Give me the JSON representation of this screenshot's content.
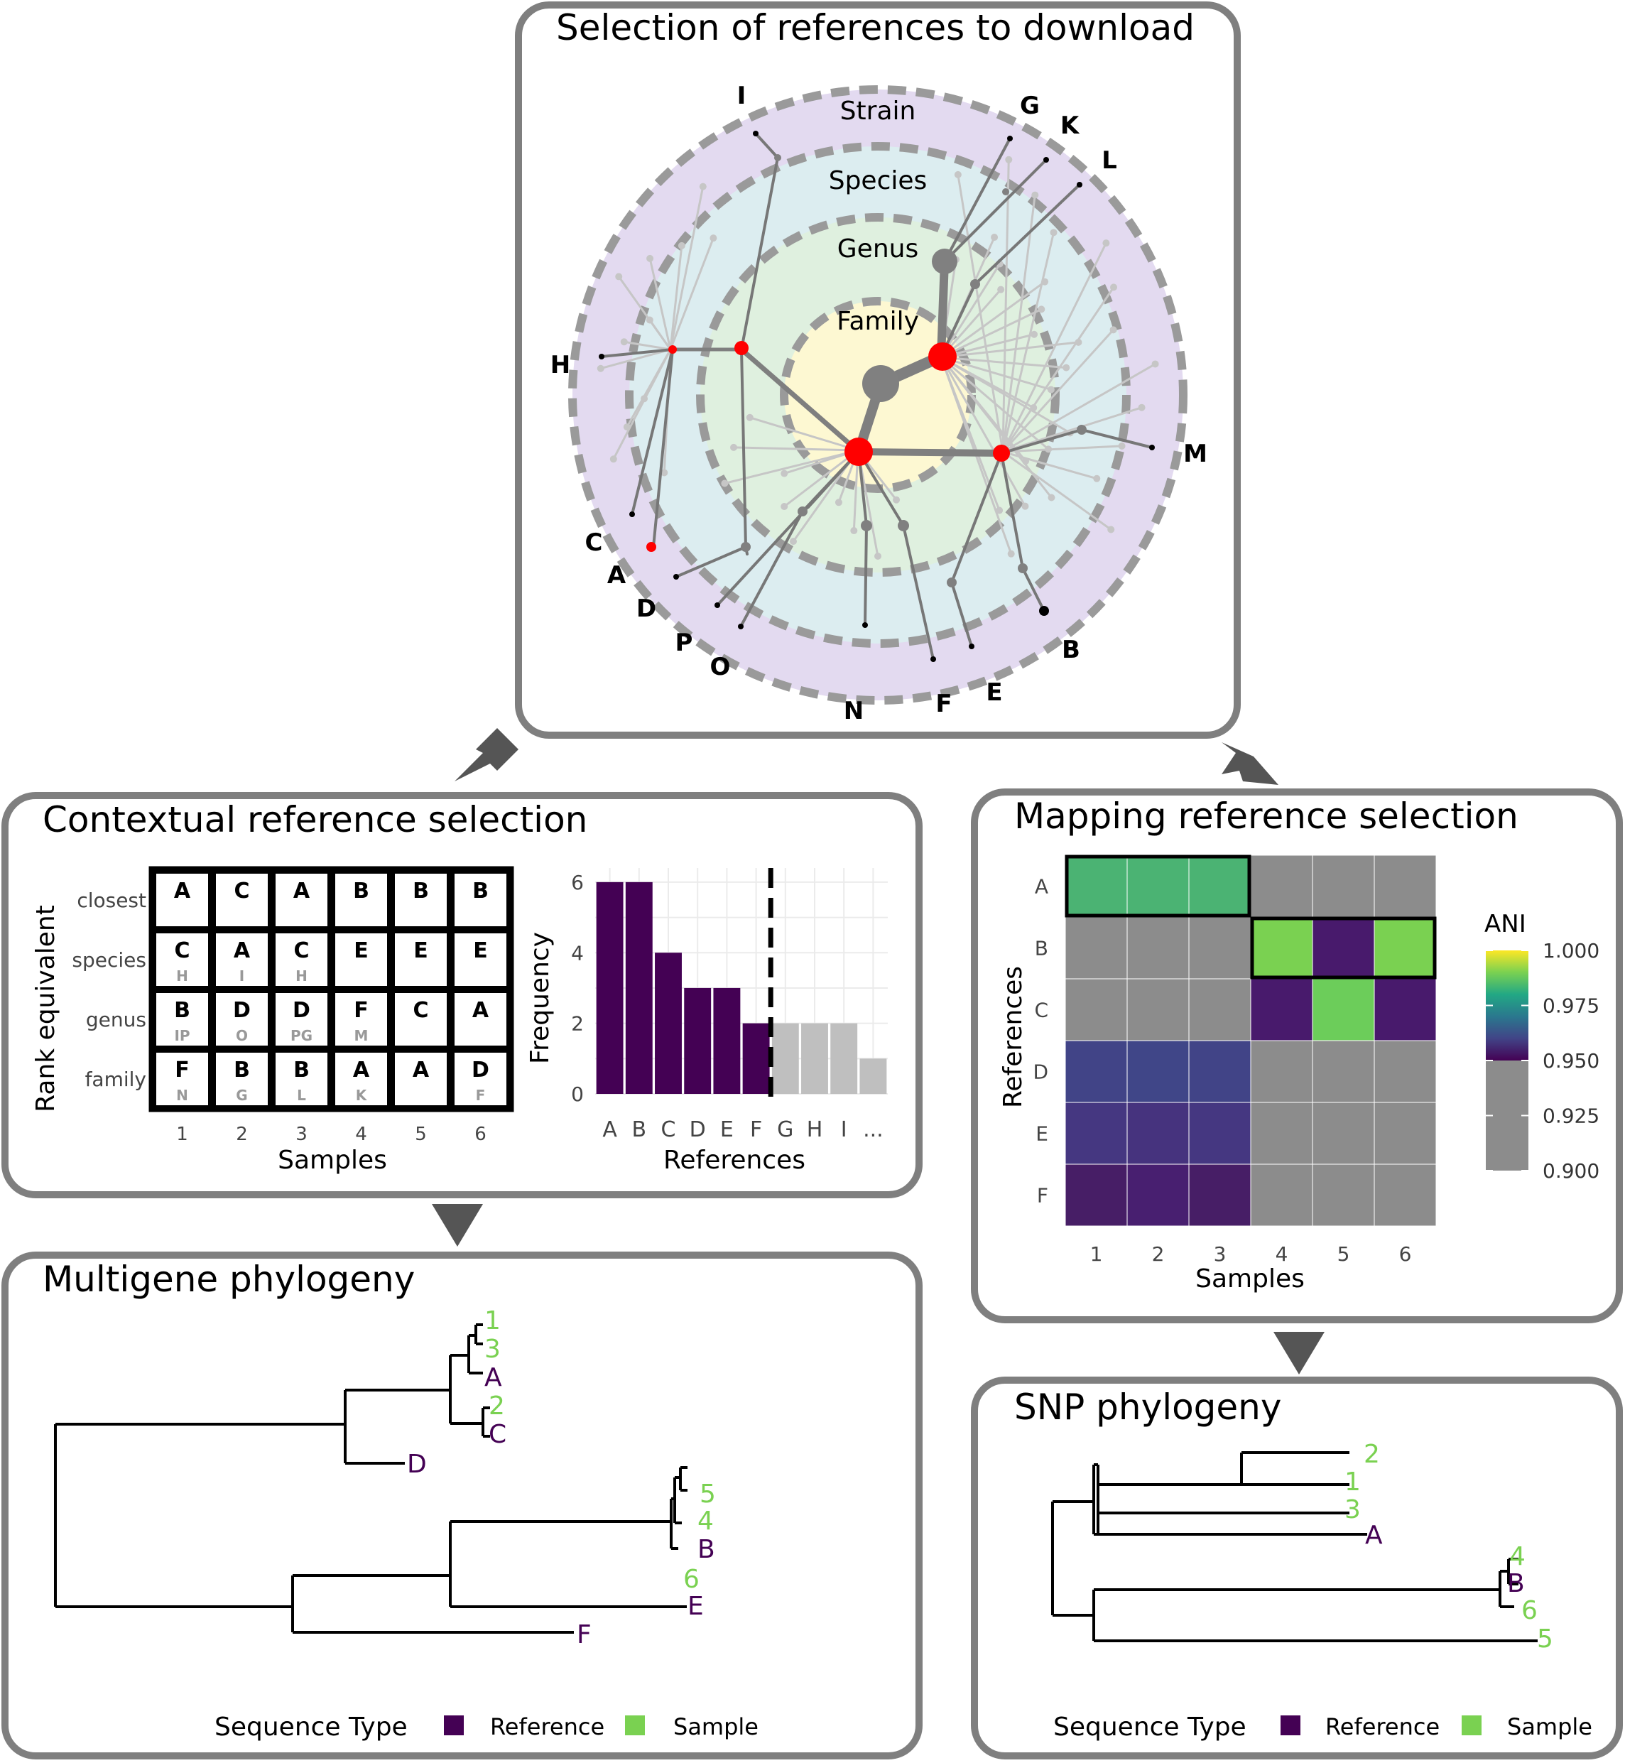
{
  "colors": {
    "reference": "#440154",
    "sample": "#7ad151",
    "gray": "#7f7f7f",
    "red": "#ff0000",
    "strain_ring": "#e3daf0",
    "species_ring": "#dcedf0",
    "genus_ring": "#dff0df",
    "family_ring": "#fdf8d2",
    "light_bar": "#bfbfbf",
    "heat_gray": "#8c8c8c"
  },
  "top_panel": {
    "title": "Selection of references to download",
    "rings": [
      "Strain",
      "Species",
      "Genus",
      "Family"
    ],
    "leaf_labels": [
      "I",
      "G",
      "K",
      "L",
      "H",
      "M",
      "C",
      "A",
      "D",
      "P",
      "O",
      "N",
      "F",
      "E",
      "B"
    ]
  },
  "contextual": {
    "title": "Contextual reference selection",
    "table": {
      "ylabel": "Rank equivalent",
      "xlabel": "Samples",
      "rows": [
        "closest",
        "species",
        "genus",
        "family"
      ],
      "cols": [
        "1",
        "2",
        "3",
        "4",
        "5",
        "6"
      ],
      "cells": [
        [
          [
            "A",
            ""
          ],
          [
            "C",
            ""
          ],
          [
            "A",
            ""
          ],
          [
            "B",
            ""
          ],
          [
            "B",
            ""
          ],
          [
            "B",
            ""
          ]
        ],
        [
          [
            "C",
            "H"
          ],
          [
            "A",
            "I"
          ],
          [
            "C",
            "H"
          ],
          [
            "E",
            ""
          ],
          [
            "E",
            ""
          ],
          [
            "E",
            ""
          ]
        ],
        [
          [
            "B",
            "IP"
          ],
          [
            "D",
            "O"
          ],
          [
            "D",
            "PG"
          ],
          [
            "F",
            "M"
          ],
          [
            "C",
            ""
          ],
          [
            "A",
            ""
          ]
        ],
        [
          [
            "F",
            "N"
          ],
          [
            "B",
            "G"
          ],
          [
            "B",
            "L"
          ],
          [
            "A",
            "K"
          ],
          [
            "A",
            ""
          ],
          [
            "D",
            "F"
          ]
        ]
      ]
    },
    "chart_data": {
      "type": "bar",
      "categories": [
        "A",
        "B",
        "C",
        "D",
        "E",
        "F",
        "G",
        "H",
        "I",
        "..."
      ],
      "values": [
        6,
        6,
        4,
        3,
        3,
        2,
        2,
        2,
        2,
        1
      ],
      "selected_count": 6,
      "xlabel": "References",
      "ylabel": "Frequency",
      "yticks": [
        "0",
        "2",
        "4",
        "6"
      ],
      "ylim": [
        0,
        6.4
      ],
      "cutoff_after_category": "F"
    }
  },
  "mapping": {
    "title": "Mapping reference selection",
    "chart_data": {
      "type": "heatmap",
      "rows": [
        "A",
        "B",
        "C",
        "D",
        "E",
        "F"
      ],
      "cols": [
        "1",
        "2",
        "3",
        "4",
        "5",
        "6"
      ],
      "xlabel": "Samples",
      "ylabel": "References",
      "colors": [
        [
          "#4bb373",
          "#4bb373",
          "#4bb373",
          "#8c8c8c",
          "#8c8c8c",
          "#8c8c8c"
        ],
        [
          "#8c8c8c",
          "#8c8c8c",
          "#8c8c8c",
          "#7ad151",
          "#481a6c",
          "#7ad151"
        ],
        [
          "#8c8c8c",
          "#8c8c8c",
          "#8c8c8c",
          "#481a6c",
          "#6ccd5a",
          "#481a6c"
        ],
        [
          "#414487",
          "#404688",
          "#414487",
          "#8c8c8c",
          "#8c8c8c",
          "#8c8c8c"
        ],
        [
          "#453781",
          "#46337e",
          "#453781",
          "#8c8c8c",
          "#8c8c8c",
          "#8c8c8c"
        ],
        [
          "#471e66",
          "#481f70",
          "#471e66",
          "#8c8c8c",
          "#8c8c8c",
          "#8c8c8c"
        ]
      ],
      "selected_boxes": [
        {
          "row": "A",
          "from_col": "1",
          "to_col": "3"
        },
        {
          "row": "B",
          "from_col": "4",
          "to_col": "6"
        }
      ],
      "legend": {
        "title": "ANI",
        "ticks": [
          "1.000",
          "0.975",
          "0.950",
          "0.925",
          "0.900"
        ]
      }
    }
  },
  "multigene": {
    "title": "Multigene phylogeny",
    "tips": [
      {
        "label": "1",
        "type": "sample"
      },
      {
        "label": "3",
        "type": "sample"
      },
      {
        "label": "A",
        "type": "reference"
      },
      {
        "label": "2",
        "type": "sample"
      },
      {
        "label": "C",
        "type": "reference"
      },
      {
        "label": "D",
        "type": "reference"
      },
      {
        "label": "5",
        "type": "sample"
      },
      {
        "label": "4",
        "type": "sample"
      },
      {
        "label": "B",
        "type": "reference"
      },
      {
        "label": "6",
        "type": "sample"
      },
      {
        "label": "E",
        "type": "reference"
      },
      {
        "label": "F",
        "type": "reference"
      }
    ],
    "legend": {
      "title": "Sequence Type",
      "items": [
        "Reference",
        "Sample"
      ]
    }
  },
  "snp": {
    "title": "SNP phylogeny",
    "tips": [
      {
        "label": "2",
        "type": "sample"
      },
      {
        "label": "1",
        "type": "sample"
      },
      {
        "label": "3",
        "type": "sample"
      },
      {
        "label": "A",
        "type": "reference"
      },
      {
        "label": "4",
        "type": "sample"
      },
      {
        "label": "B",
        "type": "reference"
      },
      {
        "label": "6",
        "type": "sample"
      },
      {
        "label": "5",
        "type": "sample"
      }
    ],
    "legend": {
      "title": "Sequence Type",
      "items": [
        "Reference",
        "Sample"
      ]
    }
  }
}
